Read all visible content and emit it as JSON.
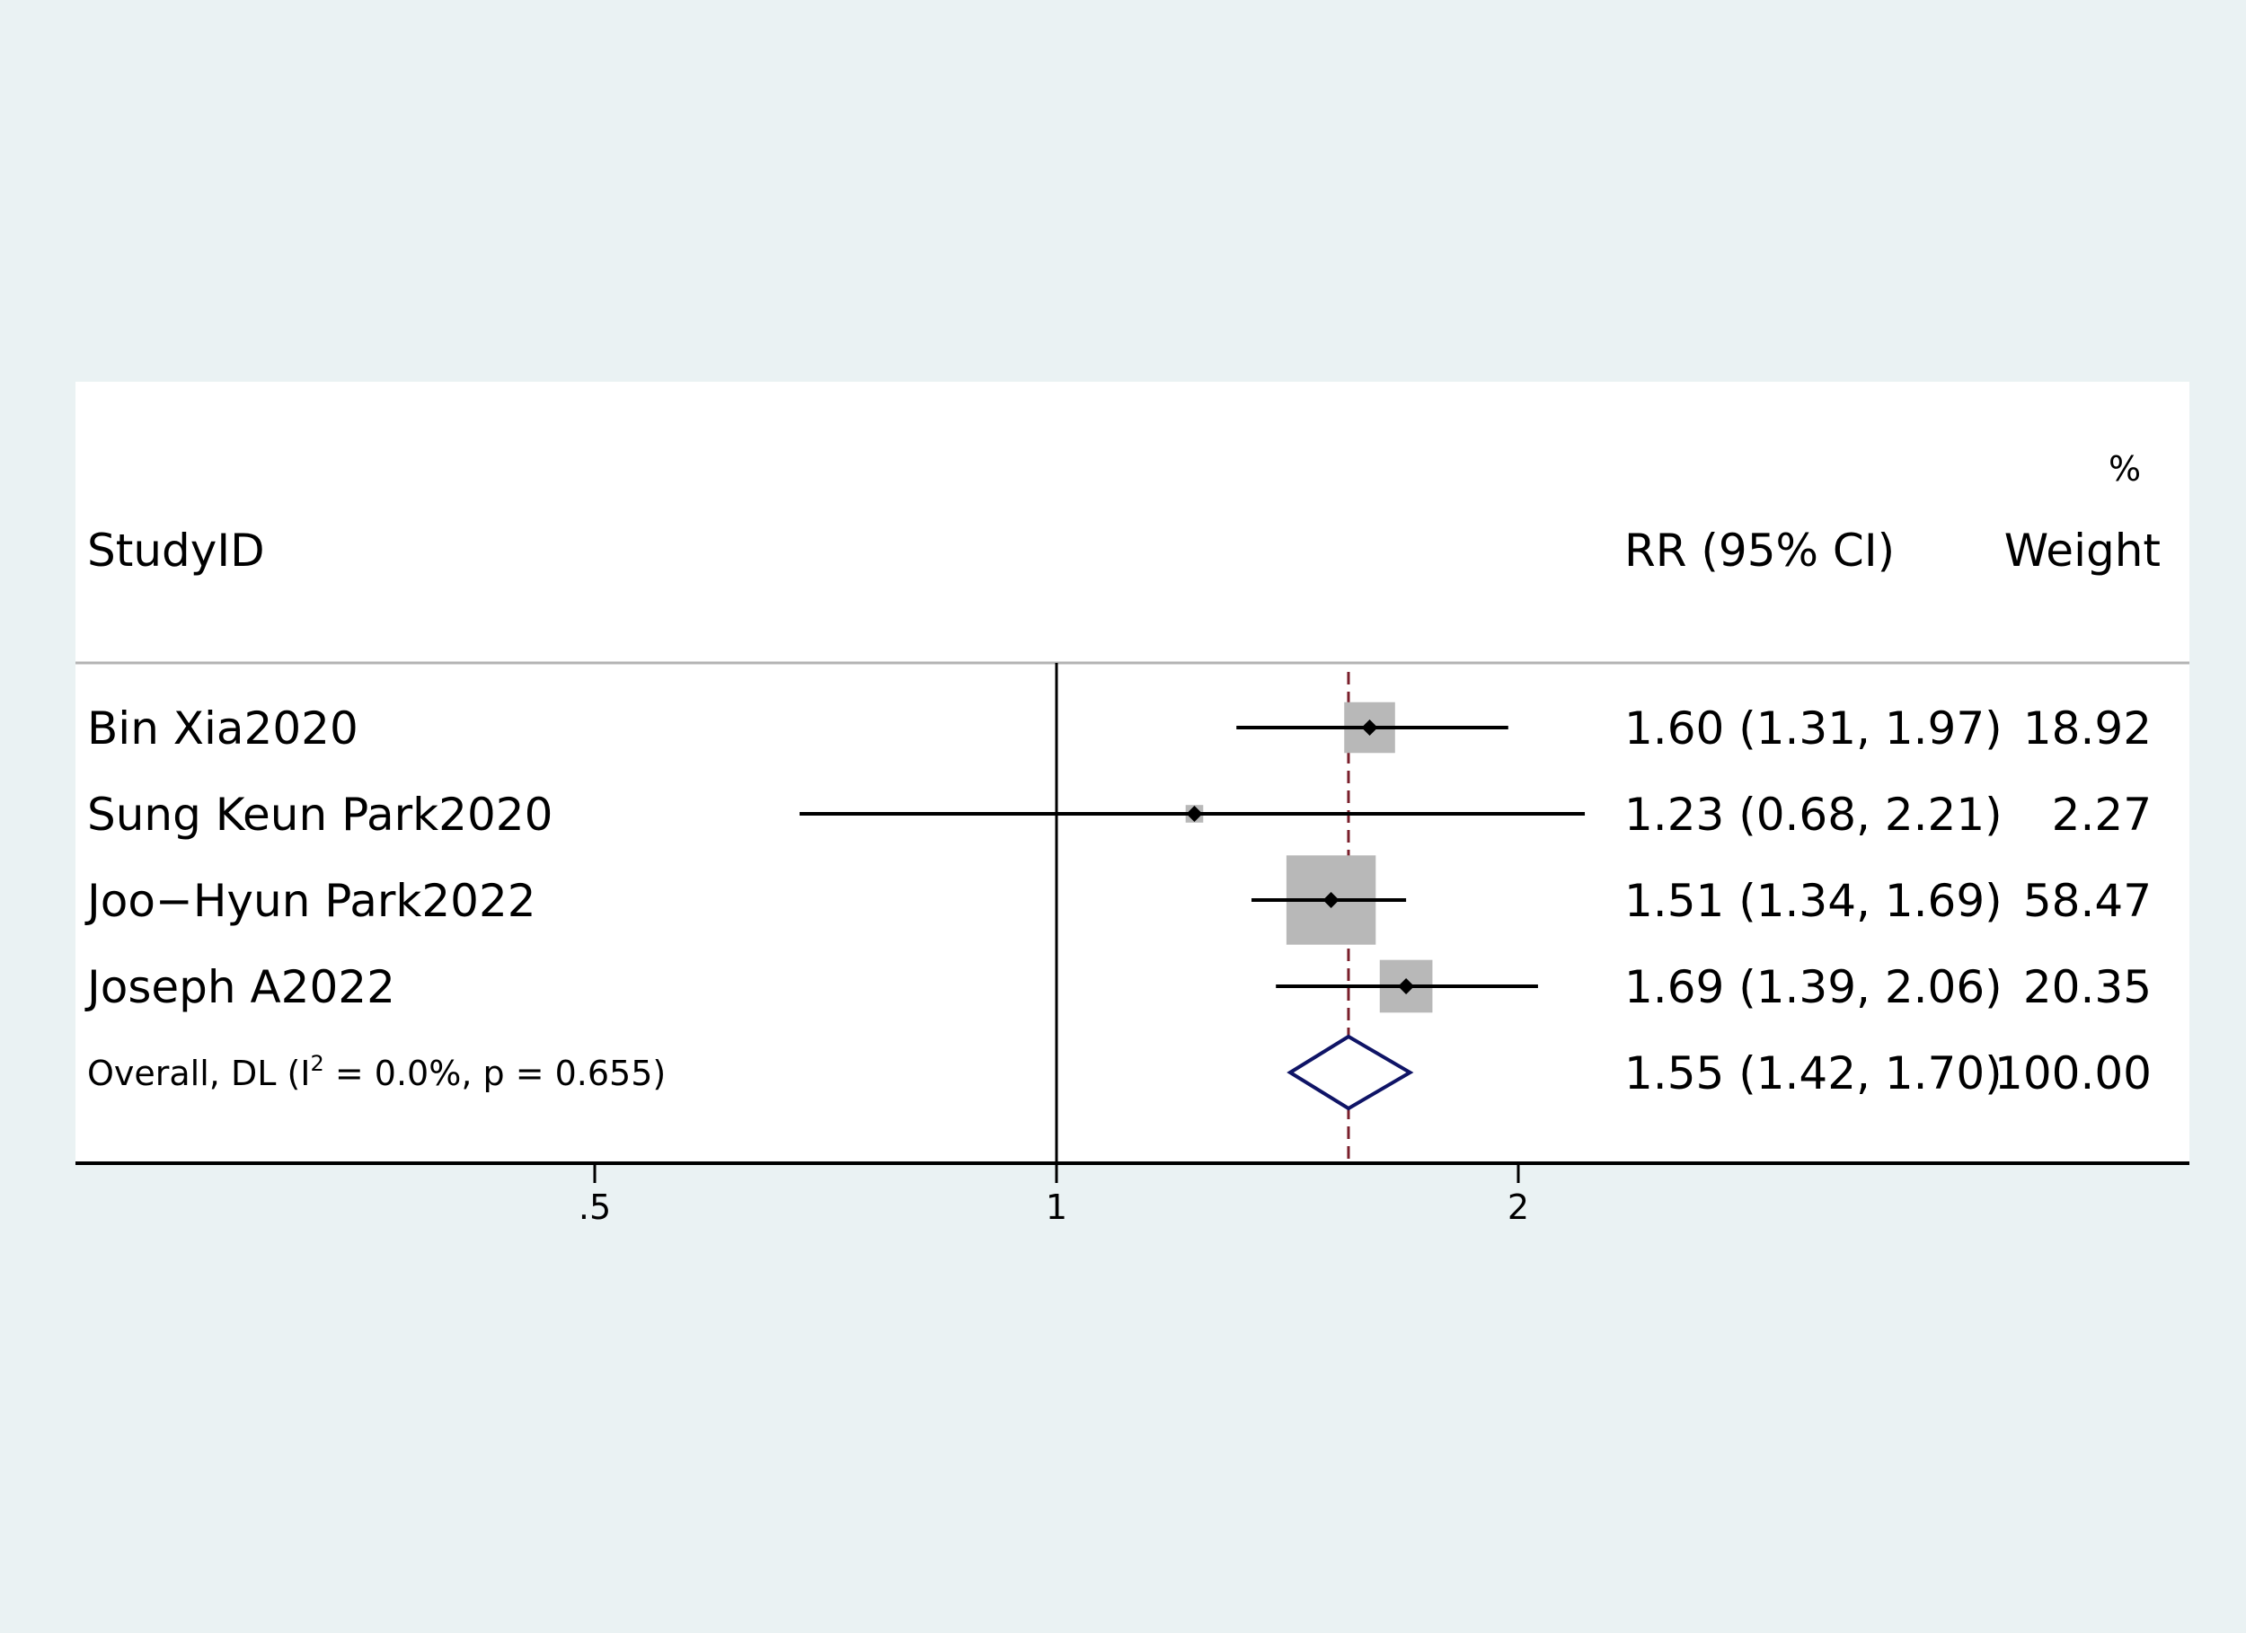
{
  "chart_data": {
    "type": "forest",
    "header": {
      "study_col": "StudyID",
      "estimate_col": "RR (95% CI)",
      "weight_col_top": "%",
      "weight_col": "Weight"
    },
    "studies": [
      {
        "label": "Bin Xia2020",
        "rr": 1.6,
        "lo": 1.31,
        "hi": 1.97,
        "ci_text": "1.60 (1.31, 1.97)",
        "weight": 18.92,
        "weight_text": "18.92"
      },
      {
        "label": "Sung Keun Park2020",
        "rr": 1.23,
        "lo": 0.68,
        "hi": 2.21,
        "ci_text": "1.23 (0.68, 2.21)",
        "weight": 2.27,
        "weight_text": "2.27"
      },
      {
        "label": "Joo−Hyun Park2022",
        "rr": 1.51,
        "lo": 1.34,
        "hi": 1.69,
        "ci_text": "1.51 (1.34, 1.69)",
        "weight": 58.47,
        "weight_text": "58.47"
      },
      {
        "label": "Joseph A2022",
        "rr": 1.69,
        "lo": 1.39,
        "hi": 2.06,
        "ci_text": "1.69 (1.39, 2.06)",
        "weight": 20.35,
        "weight_text": "20.35"
      }
    ],
    "overall": {
      "label_prefix": "Overall, DL (I",
      "label_sup": "2",
      "label_suffix": " = 0.0%, p = 0.655)",
      "rr": 1.55,
      "lo": 1.42,
      "hi": 1.7,
      "ci_text": "1.55 (1.42, 1.70)",
      "weight_text": "100.00"
    },
    "x_axis": {
      "scale": "log",
      "ticks": [
        {
          "value": 0.5,
          "label": ".5"
        },
        {
          "value": 1,
          "label": "1"
        },
        {
          "value": 2,
          "label": "2"
        }
      ],
      "null_line": 1
    },
    "colors": {
      "page_bg": "#eaf2f3",
      "plot_bg": "#ffffff",
      "weight_box": "#b8b8b8",
      "ci_line": "#000000",
      "overall_line": "#7a1f2b",
      "diamond": "#0f1466"
    }
  }
}
